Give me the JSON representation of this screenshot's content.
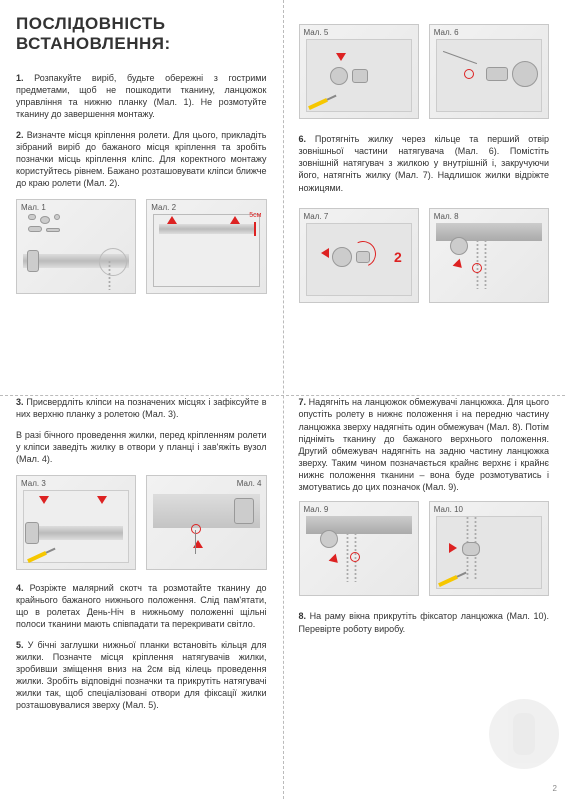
{
  "title": "ПОСЛІДОВНІСТЬ ВСТАНОВЛЕННЯ:",
  "steps": {
    "s1": "<b>1.</b> Розпакуйте виріб, будьте обережні з гострими предметами, щоб не пошкодити тканину, ланцюжок управління та нижню планку (Мал. 1). Не розмотуйте тканину до завершення монтажу.",
    "s2": "<b>2.</b> Визначте місця кріплення ролети. Для цього, прикладіть зібраний виріб до бажаного місця кріплення та зробіть позначки місць кріплення кліпс. Для коректного монтажу користуйтесь рівнем. Бажано розташовувати кліпси ближче до краю ролети (Мал. 2).",
    "s3a": "<b>3.</b> Присвердліть кліпси на позначених місцях і зафіксуйте в них верхню планку з ролетою (Мал. 3).",
    "s3b": "В разі бічного проведення жилки, перед кріпленням ролети у кліпси заведіть жилку в отвори у планці і зав'яжіть вузол (Мал. 4).",
    "s4": "<b>4.</b> Розріжте малярний скотч та розмотайте тканину до крайнього бажаного нижнього положення. Слід пам'ятати, що в ролетах День-Ніч в нижньому положенні щільні полоси тканини мають співпадати та перекривати світло.",
    "s5": "<b>5.</b> У бічні заглушки нижньої планки встановіть кільця для жилки. Позначте місця кріплення натягувачів жилки, зробивши зміщення вниз на 2см від кілець проведення жилки. Зробіть відповідні позначки та прикрутіть натягувачі жилки так, щоб спеціалізовані отвори для фіксації жилки розташовувалися зверху (Мал. 5).",
    "s6": "<b>6.</b> Протягніть жилку через кільце та перший отвір зовнішньої частини натягувача (Мал. 6). Помістіть зовнішній натягувач з жилкою у внутрішній і, закручуючи його, натягніть жилку (Мал. 7). Надлишок жилки відріжте ножицями.",
    "s7": "<b>7.</b> Надягніть на ланцюжок обмежувачі ланцюжка. Для цього опустіть ролету в нижнє положення і на передню частину ланцюжка зверху надягніть один обмежувач (Мал. 8). Потім підніміть тканину до бажаного верхнього положення. Другий обмежувач надягніть на задню частину ланцюжка зверху. Таким чином позначається крайнє верхнє і крайнє нижнє положення тканини – вона буде розмотуватись і змотуватись до цих позначок (Мал. 9).",
    "s8": "<b>8.</b> На раму вікна прикрутіть фіксатор ланцюжка (Мал. 10). Перевірте роботу виробу."
  },
  "figs": {
    "f1": "Мал. 1",
    "f2": "Мал. 2",
    "f3": "Мал. 3",
    "f4": "Мал. 4",
    "f5": "Мал. 5",
    "f6": "Мал. 6",
    "f7": "Мал. 7",
    "f8": "Мал. 8",
    "f9": "Мал. 9",
    "f10": "Мал. 10"
  },
  "annot": {
    "dist5cm": "5см",
    "two": "2"
  },
  "page_number": "2"
}
